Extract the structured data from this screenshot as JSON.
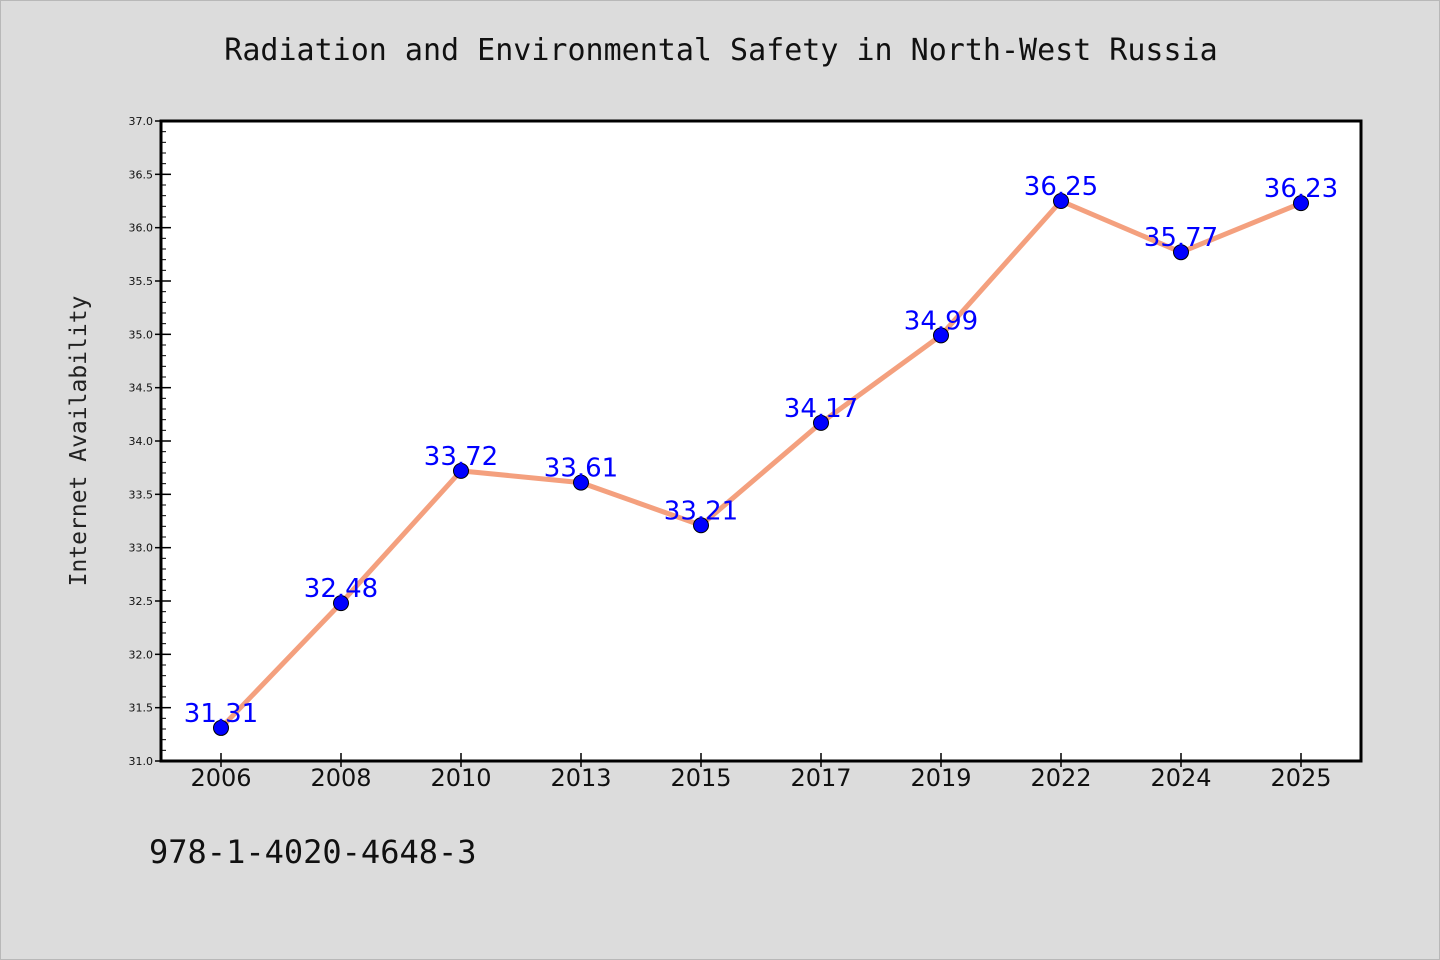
{
  "title": "Radiation and Environmental Safety in North-West Russia",
  "footer_text": "978-1-4020-4648-3",
  "colors": {
    "background": "#dcdcdc",
    "plot_background": "#ffffff",
    "line": "#f4a07e",
    "marker": "#0000ff",
    "data_label": "#0000ff",
    "axis": "#000000"
  },
  "chart_data": {
    "type": "line",
    "title": "Radiation and Environmental Safety in North-West Russia",
    "xlabel": "",
    "ylabel": "Internet Availability",
    "categories": [
      "2006",
      "2008",
      "2010",
      "2013",
      "2015",
      "2017",
      "2019",
      "2022",
      "2024",
      "2025"
    ],
    "series": [
      {
        "values": [
          31.31,
          32.48,
          33.72,
          33.61,
          33.21,
          34.17,
          34.99,
          36.25,
          35.77,
          36.23
        ],
        "data_labels": [
          "31.31",
          "32.48",
          "33.72",
          "33.61",
          "33.21",
          "34.17",
          "34.99",
          "36.25",
          "35.77",
          "36.23"
        ]
      }
    ],
    "ylim": [
      31.0,
      37.0
    ],
    "yticks": [
      "31.0",
      "31.5",
      "32.0",
      "32.5",
      "33.0",
      "33.5",
      "34.0",
      "34.5",
      "35.0",
      "35.5",
      "36.0",
      "36.5",
      "37.0"
    ],
    "grid": false,
    "legend": "none"
  }
}
